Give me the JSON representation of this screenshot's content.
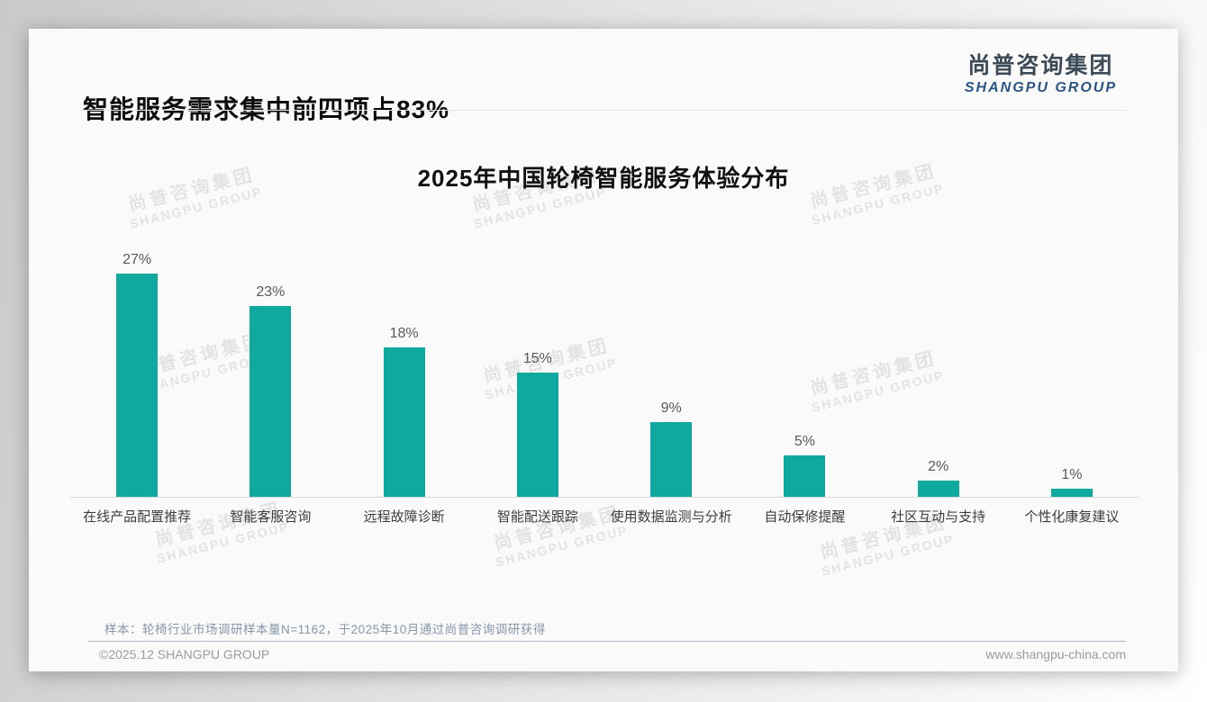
{
  "header": {
    "title": "智能服务需求集中前四项占83%",
    "logo": {
      "cn": "尚普咨询集团",
      "en": "SHANGPU GROUP"
    }
  },
  "chart_data": {
    "type": "bar",
    "title": "2025年中国轮椅智能服务体验分布",
    "categories": [
      "在线产品配置推荐",
      "智能客服咨询",
      "远程故障诊断",
      "智能配送跟踪",
      "使用数据监测与分析",
      "自动保修提醒",
      "社区互动与支持",
      "个性化康复建议"
    ],
    "values": [
      27,
      23,
      18,
      15,
      9,
      5,
      2,
      1
    ],
    "value_labels": [
      "27%",
      "23%",
      "18%",
      "15%",
      "9%",
      "5%",
      "2%",
      "1%"
    ],
    "unit": "%",
    "bar_color": "#0fa9a0",
    "ylim": [
      0,
      30
    ],
    "grid": false,
    "legend": false,
    "xlabel": "",
    "ylabel": ""
  },
  "watermark": {
    "line1": "尚普咨询集团",
    "line2": "SHANGPU GROUP"
  },
  "footer": {
    "sample_note": "样本：轮椅行业市场调研样本量N=1162，于2025年10月通过尚普咨询调研获得",
    "copyright": "©2025.12 SHANGPU GROUP",
    "website": "www.shangpu-china.com"
  },
  "colors": {
    "bar": "#0fa9a0",
    "logo_cn": "#3d4a58",
    "logo_en": "#2b5582",
    "sample_note": "#8796ab",
    "watermark": "#e3e3e3"
  }
}
